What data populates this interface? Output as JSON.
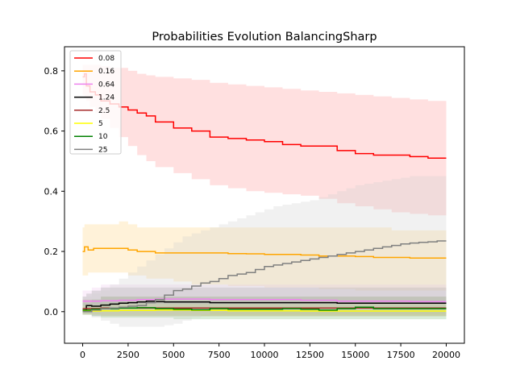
{
  "chart_data": {
    "type": "line",
    "title": "Probabilities Evolution BalancingSharp",
    "xlabel": "",
    "ylabel": "",
    "xlim": [
      -1000,
      21000
    ],
    "ylim": [
      -0.105,
      0.88
    ],
    "x_ticks": [
      0,
      2500,
      5000,
      7500,
      10000,
      12500,
      15000,
      17500,
      20000
    ],
    "y_ticks": [
      0.0,
      0.2,
      0.4,
      0.6,
      0.8
    ],
    "x_tick_labels": [
      "0",
      "2500",
      "5000",
      "7500",
      "10000",
      "12500",
      "15000",
      "17500",
      "20000"
    ],
    "y_tick_labels": [
      "0.0",
      "0.2",
      "0.4",
      "0.6",
      "0.8"
    ],
    "grid": false,
    "legend_position": "top-left",
    "series": [
      {
        "name": "0.08",
        "color": "#ff0000",
        "band_color": "#ff9999",
        "x": [
          0,
          100,
          200,
          400,
          700,
          1000,
          1500,
          2000,
          2500,
          3000,
          3500,
          4000,
          5000,
          6000,
          7000,
          8000,
          9000,
          10000,
          11000,
          12000,
          13000,
          14000,
          15000,
          16000,
          17000,
          18000,
          19000,
          20000
        ],
        "y": [
          0.78,
          0.79,
          0.75,
          0.73,
          0.72,
          0.7,
          0.69,
          0.68,
          0.67,
          0.66,
          0.65,
          0.63,
          0.61,
          0.6,
          0.58,
          0.575,
          0.57,
          0.565,
          0.555,
          0.55,
          0.55,
          0.535,
          0.525,
          0.52,
          0.52,
          0.515,
          0.51,
          0.51
        ],
        "upper": [
          0.82,
          0.82,
          0.82,
          0.82,
          0.82,
          0.815,
          0.81,
          0.81,
          0.8,
          0.79,
          0.785,
          0.78,
          0.775,
          0.77,
          0.76,
          0.755,
          0.75,
          0.745,
          0.74,
          0.735,
          0.73,
          0.725,
          0.72,
          0.715,
          0.71,
          0.705,
          0.7,
          0.695
        ],
        "lower": [
          0.72,
          0.71,
          0.7,
          0.68,
          0.66,
          0.64,
          0.61,
          0.58,
          0.55,
          0.52,
          0.5,
          0.48,
          0.46,
          0.44,
          0.42,
          0.41,
          0.4,
          0.395,
          0.39,
          0.385,
          0.375,
          0.36,
          0.35,
          0.34,
          0.33,
          0.325,
          0.32,
          0.32
        ]
      },
      {
        "name": "0.16",
        "color": "#ffa500",
        "band_color": "#ffd580",
        "x": [
          0,
          100,
          300,
          600,
          1000,
          1500,
          2000,
          2500,
          3000,
          3500,
          4000,
          5000,
          6000,
          7000,
          8000,
          9000,
          10000,
          11000,
          12000,
          13000,
          14000,
          15000,
          16000,
          17000,
          18000,
          19000,
          20000
        ],
        "y": [
          0.2,
          0.215,
          0.205,
          0.21,
          0.21,
          0.21,
          0.21,
          0.205,
          0.2,
          0.2,
          0.195,
          0.195,
          0.195,
          0.195,
          0.193,
          0.192,
          0.19,
          0.19,
          0.188,
          0.185,
          0.185,
          0.183,
          0.18,
          0.18,
          0.178,
          0.178,
          0.178
        ],
        "upper": [
          0.28,
          0.29,
          0.29,
          0.29,
          0.29,
          0.29,
          0.3,
          0.29,
          0.28,
          0.28,
          0.28,
          0.28,
          0.28,
          0.28,
          0.28,
          0.28,
          0.28,
          0.28,
          0.28,
          0.28,
          0.28,
          0.28,
          0.28,
          0.27,
          0.27,
          0.27,
          0.27
        ],
        "lower": [
          0.12,
          0.12,
          0.13,
          0.13,
          0.13,
          0.13,
          0.13,
          0.12,
          0.12,
          0.11,
          0.11,
          0.1,
          0.09,
          0.09,
          0.085,
          0.085,
          0.08,
          0.08,
          0.08,
          0.075,
          0.075,
          0.07,
          0.07,
          0.07,
          0.07,
          0.07,
          0.07
        ]
      },
      {
        "name": "0.64",
        "color": "#ee82ee",
        "band_color": "#f0c8f0",
        "x": [
          0,
          500,
          1000,
          2000,
          3000,
          4000,
          5000,
          6000,
          7000,
          8000,
          9000,
          10000,
          12000,
          14000,
          16000,
          18000,
          20000
        ],
        "y": [
          0.035,
          0.035,
          0.036,
          0.038,
          0.04,
          0.042,
          0.042,
          0.042,
          0.04,
          0.04,
          0.04,
          0.04,
          0.038,
          0.035,
          0.035,
          0.033,
          0.033
        ],
        "upper": [
          0.07,
          0.08,
          0.09,
          0.09,
          0.09,
          0.09,
          0.09,
          0.09,
          0.09,
          0.09,
          0.09,
          0.09,
          0.09,
          0.09,
          0.09,
          0.09,
          0.09
        ],
        "lower": [
          0.0,
          -0.01,
          -0.01,
          -0.01,
          -0.01,
          -0.01,
          -0.01,
          -0.01,
          -0.01,
          -0.01,
          -0.01,
          -0.01,
          -0.01,
          -0.01,
          -0.01,
          -0.01,
          -0.01
        ]
      },
      {
        "name": "1.24",
        "color": "#000000",
        "band_color": "#9e9e9e",
        "x": [
          0,
          200,
          500,
          1000,
          1500,
          2000,
          2500,
          3000,
          3500,
          4000,
          4500,
          5000,
          6000,
          7000,
          8000,
          9000,
          10000,
          12000,
          14000,
          16000,
          18000,
          20000
        ],
        "y": [
          0.005,
          0.02,
          0.018,
          0.022,
          0.025,
          0.028,
          0.03,
          0.032,
          0.035,
          0.033,
          0.032,
          0.032,
          0.032,
          0.03,
          0.03,
          0.03,
          0.03,
          0.03,
          0.028,
          0.028,
          0.028,
          0.028
        ],
        "upper": [
          0.05,
          0.06,
          0.07,
          0.08,
          0.08,
          0.08,
          0.08,
          0.08,
          0.08,
          0.08,
          0.08,
          0.08,
          0.08,
          0.08,
          0.08,
          0.08,
          0.08,
          0.08,
          0.08,
          0.08,
          0.08,
          0.08
        ],
        "lower": [
          -0.01,
          -0.01,
          -0.015,
          -0.015,
          -0.015,
          -0.015,
          -0.015,
          -0.015,
          -0.015,
          -0.015,
          -0.015,
          -0.015,
          -0.015,
          -0.015,
          -0.015,
          -0.015,
          -0.015,
          -0.015,
          -0.015,
          -0.015,
          -0.015,
          -0.015
        ]
      },
      {
        "name": "2.5",
        "color": "#a52a2a",
        "band_color": "#c48a8a",
        "x": [
          0,
          1000,
          2000,
          4000,
          6000,
          8000,
          10000,
          12000,
          14000,
          16000,
          18000,
          20000
        ],
        "y": [
          0.01,
          0.012,
          0.012,
          0.012,
          0.012,
          0.012,
          0.012,
          0.012,
          0.012,
          0.012,
          0.012,
          0.012
        ],
        "upper": [
          0.04,
          0.05,
          0.05,
          0.05,
          0.05,
          0.05,
          0.05,
          0.05,
          0.05,
          0.05,
          0.05,
          0.05
        ],
        "lower": [
          -0.01,
          -0.015,
          -0.015,
          -0.015,
          -0.015,
          -0.015,
          -0.015,
          -0.015,
          -0.015,
          -0.015,
          -0.015,
          -0.015
        ]
      },
      {
        "name": "5",
        "color": "#ffff00",
        "band_color": "#ffff99",
        "x": [
          0,
          1000,
          2000,
          4000,
          6000,
          8000,
          10000,
          12000,
          14000,
          16000,
          18000,
          20000
        ],
        "y": [
          0.002,
          0.003,
          0.004,
          0.005,
          0.004,
          0.003,
          0.003,
          0.002,
          0.002,
          0.002,
          0.002,
          0.002
        ],
        "upper": [
          0.02,
          0.025,
          0.025,
          0.025,
          0.025,
          0.025,
          0.025,
          0.025,
          0.025,
          0.025,
          0.025,
          0.025
        ],
        "lower": [
          -0.01,
          -0.015,
          -0.015,
          -0.015,
          -0.015,
          -0.015,
          -0.015,
          -0.015,
          -0.015,
          -0.015,
          -0.015,
          -0.015
        ]
      },
      {
        "name": "10",
        "color": "#008000",
        "band_color": "#80c080",
        "x": [
          0,
          500,
          1000,
          2000,
          3000,
          4000,
          5000,
          6000,
          7000,
          8000,
          9000,
          10000,
          11000,
          12000,
          13000,
          14000,
          15000,
          16000,
          17000,
          18000,
          19000,
          20000
        ],
        "y": [
          0.005,
          0.008,
          0.01,
          0.012,
          0.013,
          0.01,
          0.008,
          0.006,
          0.01,
          0.008,
          0.008,
          0.008,
          0.01,
          0.008,
          0.005,
          0.01,
          0.015,
          0.01,
          0.01,
          0.01,
          0.01,
          0.01
        ],
        "upper": [
          0.03,
          0.04,
          0.05,
          0.05,
          0.05,
          0.05,
          0.05,
          0.05,
          0.05,
          0.05,
          0.05,
          0.05,
          0.05,
          0.05,
          0.05,
          0.05,
          0.05,
          0.05,
          0.05,
          0.05,
          0.05,
          0.05
        ],
        "lower": [
          -0.01,
          -0.015,
          -0.02,
          -0.02,
          -0.02,
          -0.02,
          -0.025,
          -0.025,
          -0.025,
          -0.025,
          -0.025,
          -0.025,
          -0.025,
          -0.025,
          -0.025,
          -0.025,
          -0.025,
          -0.025,
          -0.025,
          -0.025,
          -0.025,
          -0.025
        ]
      },
      {
        "name": "25",
        "color": "#808080",
        "band_color": "#cfcfcf",
        "x": [
          0,
          500,
          1000,
          1500,
          2000,
          2500,
          3000,
          3500,
          4000,
          4500,
          5000,
          5500,
          6000,
          6500,
          7000,
          7500,
          8000,
          8500,
          9000,
          9500,
          10000,
          10500,
          11000,
          11500,
          12000,
          12500,
          13000,
          13500,
          14000,
          14500,
          15000,
          15500,
          16000,
          16500,
          17000,
          17500,
          18000,
          18500,
          19000,
          19500,
          20000
        ],
        "y": [
          0.0,
          0.005,
          0.01,
          0.012,
          0.015,
          0.018,
          0.02,
          0.03,
          0.04,
          0.055,
          0.07,
          0.075,
          0.085,
          0.095,
          0.1,
          0.11,
          0.12,
          0.125,
          0.13,
          0.14,
          0.15,
          0.155,
          0.16,
          0.165,
          0.17,
          0.175,
          0.18,
          0.185,
          0.19,
          0.195,
          0.2,
          0.205,
          0.21,
          0.215,
          0.22,
          0.225,
          0.228,
          0.23,
          0.232,
          0.235,
          0.235
        ],
        "upper": [
          0.05,
          0.06,
          0.07,
          0.09,
          0.11,
          0.13,
          0.15,
          0.17,
          0.19,
          0.21,
          0.23,
          0.25,
          0.26,
          0.27,
          0.28,
          0.29,
          0.3,
          0.31,
          0.32,
          0.33,
          0.34,
          0.35,
          0.355,
          0.36,
          0.365,
          0.37,
          0.38,
          0.39,
          0.4,
          0.41,
          0.42,
          0.425,
          0.43,
          0.435,
          0.44,
          0.445,
          0.45,
          0.45,
          0.45,
          0.45,
          0.45
        ],
        "lower": [
          -0.01,
          -0.02,
          -0.03,
          -0.04,
          -0.05,
          -0.05,
          -0.05,
          -0.05,
          -0.05,
          -0.045,
          -0.04,
          -0.03,
          -0.02,
          -0.01,
          0.0,
          0.0,
          0.0,
          0.0,
          0.0,
          0.0,
          0.0,
          0.0,
          0.0,
          0.0,
          0.0,
          0.0,
          0.0,
          0.0,
          0.0,
          0.0,
          0.0,
          0.0,
          0.0,
          0.0,
          0.0,
          0.0,
          0.0,
          0.0,
          0.0,
          0.0,
          0.0
        ]
      }
    ]
  }
}
